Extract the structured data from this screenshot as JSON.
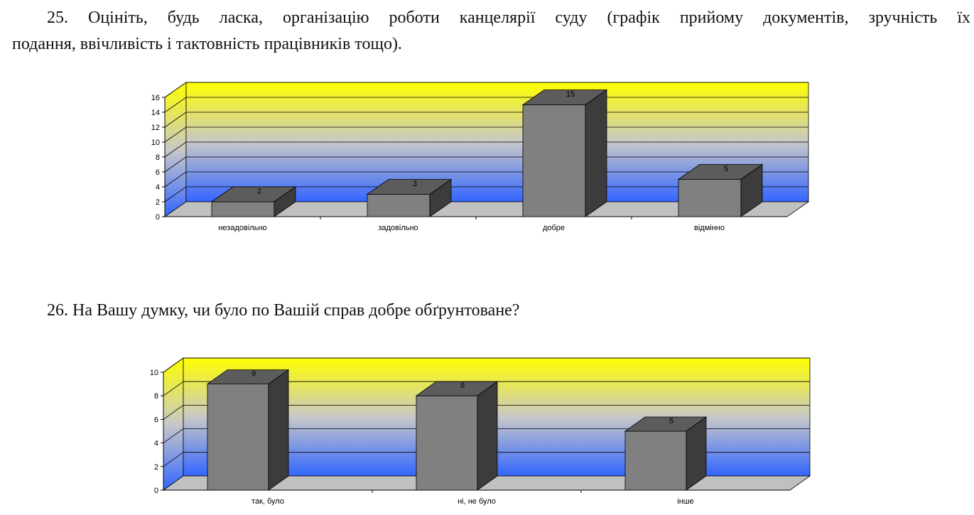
{
  "questions": {
    "q25": {
      "line1": "25. Оцініть, будь ласка, організацію роботи канцелярії суду (графік прийому документів, зручність їх",
      "line2": "подання, ввічливість і тактовність працівників тощо)."
    },
    "q26": {
      "text": "26. На Вашу думку, чи було по Вашій справ добре обґрунтоване?"
    }
  },
  "colors": {
    "bar_front": "#808080",
    "bar_top": "#5c5c5c",
    "bar_side": "#3c3c3c",
    "floor": "#c0c0c0",
    "wall_top": "#ffff00",
    "wall_mid": "#c8c8c8",
    "wall_bottom": "#3366ff"
  },
  "chart_data": [
    {
      "type": "bar",
      "categories": [
        "незадовільно",
        "задовільно",
        "добре",
        "відмінно"
      ],
      "values": [
        2,
        3,
        15,
        5
      ],
      "ylim": [
        0,
        16
      ],
      "yticks": [
        0,
        2,
        4,
        6,
        8,
        10,
        12,
        14,
        16
      ],
      "title": "",
      "xlabel": "",
      "ylabel": "",
      "data_labels": [
        "2",
        "3",
        "15",
        "5"
      ],
      "style": "3d-column",
      "grid": true
    },
    {
      "type": "bar",
      "categories": [
        "так, було",
        "ні, не було",
        "інше"
      ],
      "values": [
        9,
        8,
        5
      ],
      "ylim": [
        0,
        10
      ],
      "yticks": [
        0,
        2,
        4,
        6,
        8,
        10
      ],
      "title": "",
      "xlabel": "",
      "ylabel": "",
      "data_labels": [
        "9",
        "8",
        "5"
      ],
      "style": "3d-column",
      "grid": true
    }
  ]
}
